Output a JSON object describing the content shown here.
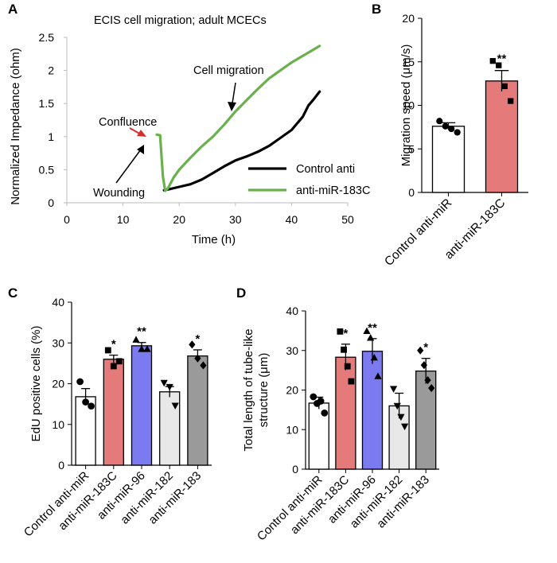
{
  "chart_data": [
    {
      "panel": "A",
      "type": "line",
      "title": "ECIS cell migration; adult MCECs",
      "xlabel": "Time (h)",
      "ylabel": "Normalized Impedance (ohm)",
      "xlim": [
        0,
        50
      ],
      "ylim": [
        0,
        2.5
      ],
      "xticks": [
        0,
        10,
        20,
        30,
        40,
        50
      ],
      "yticks": [
        0,
        0.5,
        1,
        1.5,
        2,
        2.5
      ],
      "legend_position": "bottom-right",
      "series": [
        {
          "name": "Control anti",
          "color": "#000000",
          "x": [
            17.3,
            17.8,
            18.5,
            20,
            22,
            24,
            26,
            28,
            30,
            32,
            34,
            36,
            38,
            40,
            42,
            43,
            44,
            45
          ],
          "y": [
            0.19,
            0.2,
            0.21,
            0.24,
            0.28,
            0.35,
            0.45,
            0.55,
            0.64,
            0.7,
            0.77,
            0.86,
            0.98,
            1.1,
            1.3,
            1.47,
            1.57,
            1.68
          ]
        },
        {
          "name": "anti-miR-183C",
          "color": "#6ab04c",
          "x": [
            16,
            16.6,
            17.1,
            17.5,
            18,
            19,
            20,
            22,
            24,
            26,
            28,
            30,
            32,
            34,
            36,
            38,
            40,
            42,
            44,
            45
          ],
          "y": [
            1.03,
            1.02,
            0.4,
            0.18,
            0.22,
            0.38,
            0.5,
            0.68,
            0.85,
            1.0,
            1.18,
            1.38,
            1.55,
            1.72,
            1.88,
            2.0,
            2.12,
            2.22,
            2.32,
            2.37
          ]
        }
      ],
      "annotations": [
        "Confluence",
        "Wounding",
        "Cell migration"
      ]
    },
    {
      "panel": "B",
      "type": "bar",
      "ylabel": "Migration speed (μm/s)",
      "ylim": [
        0,
        20
      ],
      "yticks": [
        0,
        5,
        10,
        15,
        20
      ],
      "categories": [
        "Control anti-miR",
        "anti-miR-183C"
      ],
      "values": [
        7.6,
        12.8
      ],
      "errors": [
        0.4,
        1.2
      ],
      "colors": [
        "#ffffff",
        "#e47a7a"
      ],
      "markers": [
        "circle",
        "square"
      ],
      "points": [
        [
          8.2,
          7.6,
          7.3,
          6.9
        ],
        [
          15.1,
          14.6,
          12.2,
          10.5
        ]
      ],
      "significance": [
        "",
        "**"
      ]
    },
    {
      "panel": "C",
      "type": "bar",
      "ylabel": "EdU positive cells (%)",
      "ylim": [
        0,
        40
      ],
      "yticks": [
        0,
        10,
        20,
        30,
        40
      ],
      "categories": [
        "Control anti-miR",
        "anti-miR-183C",
        "anti-miR-96",
        "anti-miR-182",
        "anti-miR-183"
      ],
      "values": [
        16.8,
        26.0,
        29.3,
        18.0,
        26.8
      ],
      "errors": [
        2.0,
        1.0,
        0.8,
        1.3,
        1.5
      ],
      "colors": [
        "#ffffff",
        "#e47a7a",
        "#7b7bef",
        "#e8e8e8",
        "#9a9a9a"
      ],
      "markers": [
        "circle",
        "square",
        "triangle-up",
        "triangle-down",
        "diamond"
      ],
      "points": [
        [
          20.5,
          15.5,
          14.5
        ],
        [
          28.2,
          24.3,
          25.5
        ],
        [
          30.8,
          28.5,
          28.5
        ],
        [
          20.2,
          19.2,
          14.6
        ],
        [
          29.6,
          26.2,
          24.5
        ]
      ],
      "significance": [
        "",
        "*",
        "**",
        "",
        "*"
      ]
    },
    {
      "panel": "D",
      "type": "bar",
      "ylabel": "Total length of tube-like structure (μm)",
      "ylim": [
        0,
        40
      ],
      "yticks": [
        0,
        10,
        20,
        30,
        40
      ],
      "categories": [
        "Control anti-miR",
        "anti-miR-183C",
        "anti-miR-96",
        "anti-miR-182",
        "anti-miR-183"
      ],
      "values": [
        16.7,
        28.3,
        29.8,
        16.0,
        24.8
      ],
      "errors": [
        1.5,
        3.3,
        3.2,
        3.2,
        3.2
      ],
      "colors": [
        "#ffffff",
        "#e47a7a",
        "#7b7bef",
        "#e8e8e8",
        "#9a9a9a"
      ],
      "markers": [
        "circle",
        "square",
        "triangle-up",
        "triangle-down",
        "diamond"
      ],
      "points": [
        [
          18.3,
          16.6,
          17.2,
          14.2
        ],
        [
          34.8,
          30.2,
          26.0,
          22.2
        ],
        [
          34.9,
          33.2,
          28.2,
          23.5
        ],
        [
          20.3,
          16.0,
          13.2,
          10.8
        ],
        [
          30.0,
          26.3,
          22.5,
          20.5
        ]
      ],
      "significance": [
        "",
        "*",
        "**",
        "",
        "*"
      ]
    }
  ]
}
